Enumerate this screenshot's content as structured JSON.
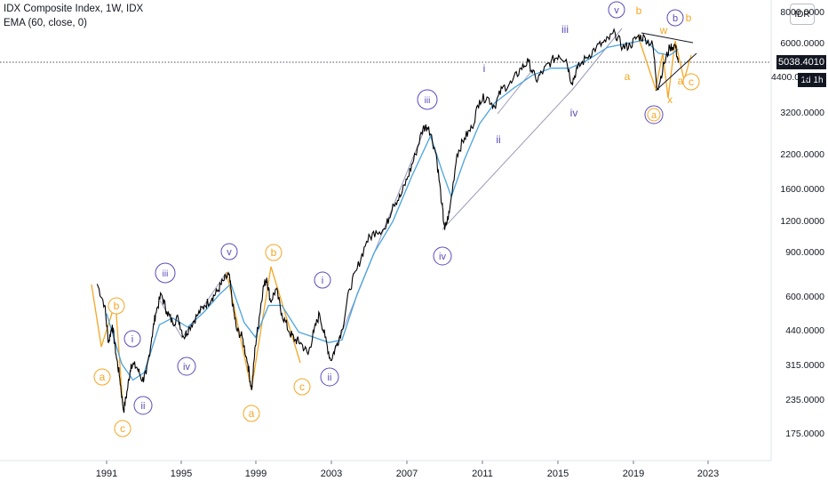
{
  "legend": {
    "title": "IDX Composite Index, 1W, IDX",
    "indicator": "EMA (60, close, 0)"
  },
  "currency_button": "IDR",
  "last_price": "5038.4010",
  "countdown": "1d 1h",
  "colors": {
    "price": "#000000",
    "ema": "#4aa3df",
    "orange": "#f5a623",
    "purple": "#5b4bb8",
    "grey_line": "#9a9ab8"
  },
  "chart_data": {
    "type": "line",
    "title": "IDX Composite Index, 1W, IDX",
    "scale": "log",
    "x_ticks": [
      "1991",
      "1995",
      "1999",
      "2003",
      "2007",
      "2011",
      "2015",
      "2019",
      "2023"
    ],
    "y_ticks": [
      "175.0000",
      "235.0000",
      "315.0000",
      "440.0000",
      "600.0000",
      "900.0000",
      "1200.0000",
      "1600.0000",
      "2200.0000",
      "3200.0000",
      "4400.0000",
      "6000.0000",
      "8000.0000"
    ],
    "ylim": [
      150,
      8800
    ],
    "series": [
      {
        "name": "IDX Composite Index",
        "points": [
          [
            1990.5,
            680
          ],
          [
            1990.9,
            560
          ],
          [
            1991.1,
            400
          ],
          [
            1991.3,
            470
          ],
          [
            1991.5,
            360
          ],
          [
            1991.7,
            290
          ],
          [
            1991.9,
            215
          ],
          [
            1992.1,
            260
          ],
          [
            1992.3,
            330
          ],
          [
            1992.6,
            320
          ],
          [
            1992.9,
            285
          ],
          [
            1993.1,
            300
          ],
          [
            1993.4,
            420
          ],
          [
            1993.6,
            520
          ],
          [
            1993.9,
            620
          ],
          [
            1994.2,
            530
          ],
          [
            1994.5,
            480
          ],
          [
            1994.8,
            500
          ],
          [
            1995.1,
            420
          ],
          [
            1995.4,
            460
          ],
          [
            1995.8,
            510
          ],
          [
            1996.2,
            560
          ],
          [
            1996.6,
            600
          ],
          [
            1996.9,
            640
          ],
          [
            1997.2,
            700
          ],
          [
            1997.5,
            740
          ],
          [
            1997.7,
            560
          ],
          [
            1997.9,
            450
          ],
          [
            1998.2,
            420
          ],
          [
            1998.5,
            330
          ],
          [
            1998.7,
            260
          ],
          [
            1998.9,
            390
          ],
          [
            1999.1,
            500
          ],
          [
            1999.3,
            650
          ],
          [
            1999.5,
            720
          ],
          [
            1999.7,
            580
          ],
          [
            2000.0,
            650
          ],
          [
            2000.3,
            520
          ],
          [
            2000.7,
            440
          ],
          [
            2001.0,
            410
          ],
          [
            2001.3,
            400
          ],
          [
            2001.7,
            360
          ],
          [
            2002.0,
            440
          ],
          [
            2002.3,
            520
          ],
          [
            2002.6,
            420
          ],
          [
            2002.9,
            340
          ],
          [
            2003.2,
            390
          ],
          [
            2003.5,
            450
          ],
          [
            2003.9,
            650
          ],
          [
            2004.3,
            780
          ],
          [
            2004.8,
            1000
          ],
          [
            2005.3,
            1100
          ],
          [
            2005.8,
            1120
          ],
          [
            2006.2,
            1400
          ],
          [
            2006.6,
            1500
          ],
          [
            2007.0,
            1800
          ],
          [
            2007.4,
            2200
          ],
          [
            2007.8,
            2800
          ],
          [
            2008.1,
            2830
          ],
          [
            2008.5,
            2200
          ],
          [
            2008.8,
            1400
          ],
          [
            2008.95,
            1110
          ],
          [
            2009.2,
            1300
          ],
          [
            2009.6,
            2200
          ],
          [
            2010.0,
            2550
          ],
          [
            2010.4,
            2800
          ],
          [
            2010.8,
            3600
          ],
          [
            2011.2,
            3700
          ],
          [
            2011.6,
            3400
          ],
          [
            2012.0,
            4000
          ],
          [
            2012.5,
            4200
          ],
          [
            2013.0,
            4800
          ],
          [
            2013.4,
            5100
          ],
          [
            2013.8,
            4300
          ],
          [
            2014.2,
            4700
          ],
          [
            2014.6,
            5100
          ],
          [
            2015.0,
            5400
          ],
          [
            2015.4,
            5200
          ],
          [
            2015.7,
            4200
          ],
          [
            2016.0,
            4800
          ],
          [
            2016.5,
            5300
          ],
          [
            2017.0,
            5800
          ],
          [
            2017.5,
            6100
          ],
          [
            2018.0,
            6600
          ],
          [
            2018.4,
            5800
          ],
          [
            2018.8,
            5900
          ],
          [
            2019.2,
            6400
          ],
          [
            2019.6,
            6300
          ],
          [
            2020.0,
            5900
          ],
          [
            2020.25,
            3950
          ],
          [
            2020.6,
            5000
          ],
          [
            2020.9,
            5800
          ],
          [
            2021.2,
            5900
          ],
          [
            2021.35,
            5038
          ]
        ]
      },
      {
        "name": "EMA (60, close, 0)",
        "points": [
          [
            1991.0,
            520
          ],
          [
            1991.8,
            330
          ],
          [
            1992.4,
            285
          ],
          [
            1993.0,
            305
          ],
          [
            1993.8,
            470
          ],
          [
            1994.5,
            500
          ],
          [
            1995.3,
            460
          ],
          [
            1996.2,
            530
          ],
          [
            1997.0,
            620
          ],
          [
            1997.6,
            680
          ],
          [
            1998.3,
            480
          ],
          [
            1998.9,
            420
          ],
          [
            1999.6,
            560
          ],
          [
            2000.3,
            560
          ],
          [
            2001.2,
            440
          ],
          [
            2002.0,
            420
          ],
          [
            2002.8,
            400
          ],
          [
            2003.5,
            410
          ],
          [
            2004.3,
            620
          ],
          [
            2005.2,
            900
          ],
          [
            2006.2,
            1200
          ],
          [
            2007.2,
            1800
          ],
          [
            2008.2,
            2600
          ],
          [
            2008.8,
            1900
          ],
          [
            2009.3,
            1500
          ],
          [
            2010.0,
            2100
          ],
          [
            2010.8,
            2900
          ],
          [
            2011.6,
            3500
          ],
          [
            2012.6,
            4000
          ],
          [
            2013.6,
            4500
          ],
          [
            2014.6,
            4800
          ],
          [
            2015.6,
            4800
          ],
          [
            2016.6,
            5200
          ],
          [
            2017.6,
            5800
          ],
          [
            2018.6,
            6000
          ],
          [
            2019.6,
            6200
          ],
          [
            2020.3,
            5500
          ],
          [
            2020.9,
            5400
          ],
          [
            2021.35,
            5700
          ]
        ]
      }
    ],
    "wave_labels": {
      "orange_circled": [
        "a",
        "b",
        "c",
        "a",
        "b",
        "c",
        "a",
        "c"
      ],
      "purple_circled": [
        "i",
        "ii",
        "iii",
        "iv",
        "v",
        "i",
        "ii",
        "iii",
        "iv",
        "v",
        "a",
        "b"
      ],
      "purple_plain": [
        "i",
        "ii",
        "iii",
        "iv"
      ],
      "orange_plain": [
        "b",
        "a",
        "w",
        "x",
        "a",
        "b"
      ]
    }
  }
}
